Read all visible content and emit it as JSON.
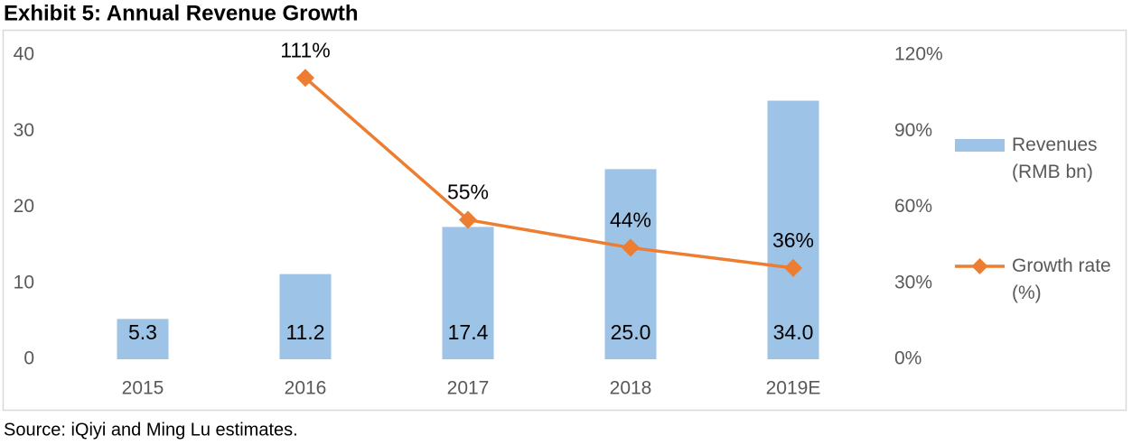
{
  "chart_data": {
    "type": "bar-line",
    "title": "Exhibit 5: Annual Revenue Growth",
    "source": "Source: iQiyi and Ming Lu estimates.",
    "categories": [
      "2015",
      "2016",
      "2017",
      "2018",
      "2019E"
    ],
    "series": [
      {
        "name": "Revenues (RMB bn)",
        "type": "bar",
        "color": "#9dc3e6",
        "values": [
          5.3,
          11.2,
          17.4,
          25.0,
          34.0
        ],
        "value_labels": [
          "5.3",
          "11.2",
          "17.4",
          "25.0",
          "34.0"
        ]
      },
      {
        "name": "Growth rate (%)",
        "type": "line",
        "axis": "y2",
        "color": "#ed7d31",
        "values": [
          null,
          111,
          55,
          44,
          36
        ],
        "value_labels": [
          null,
          "111%",
          "55%",
          "44%",
          "36%"
        ]
      }
    ],
    "ylim": [
      0,
      40
    ],
    "yticks": [
      0,
      10,
      20,
      30,
      40
    ],
    "y2lim": [
      0,
      120
    ],
    "y2ticks": [
      {
        "value": 0,
        "label": "0%"
      },
      {
        "value": 30,
        "label": "30%"
      },
      {
        "value": 60,
        "label": "60%"
      },
      {
        "value": 90,
        "label": "90%"
      },
      {
        "value": 120,
        "label": "120%"
      }
    ],
    "grid": false,
    "legend": "right"
  }
}
